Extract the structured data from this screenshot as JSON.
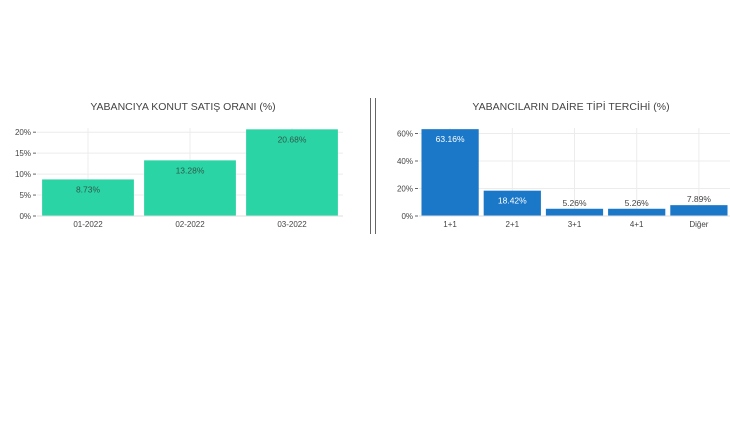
{
  "chart_data": [
    {
      "type": "bar",
      "title": "YABANCIYA KONUT SATIŞ ORANI (%)",
      "categories": [
        "01-2022",
        "02-2022",
        "03-2022"
      ],
      "values": [
        8.73,
        13.28,
        20.68
      ],
      "data_labels": [
        "8.73%",
        "13.28%",
        "20.68%"
      ],
      "ylim": [
        0,
        21
      ],
      "yticks": [
        0,
        5,
        10,
        15,
        20
      ],
      "ytick_labels": [
        "0%",
        "5%",
        "10%",
        "15%",
        "20%"
      ],
      "grid": true,
      "color": "#2bd4a4"
    },
    {
      "type": "bar",
      "title": "YABANCILARIN DAİRE TİPİ TERCİHİ (%)",
      "categories": [
        "1+1",
        "2+1",
        "3+1",
        "4+1",
        "Diğer"
      ],
      "values": [
        63.16,
        18.42,
        5.26,
        5.26,
        7.89
      ],
      "data_labels": [
        "63.16%",
        "18.42%",
        "5.26%",
        "5.26%",
        "7.89%"
      ],
      "ylim": [
        0,
        64
      ],
      "yticks": [
        0,
        20,
        40,
        60
      ],
      "ytick_labels": [
        "0%",
        "20%",
        "40%",
        "60%"
      ],
      "grid": true,
      "color": "#1b78c8"
    }
  ]
}
